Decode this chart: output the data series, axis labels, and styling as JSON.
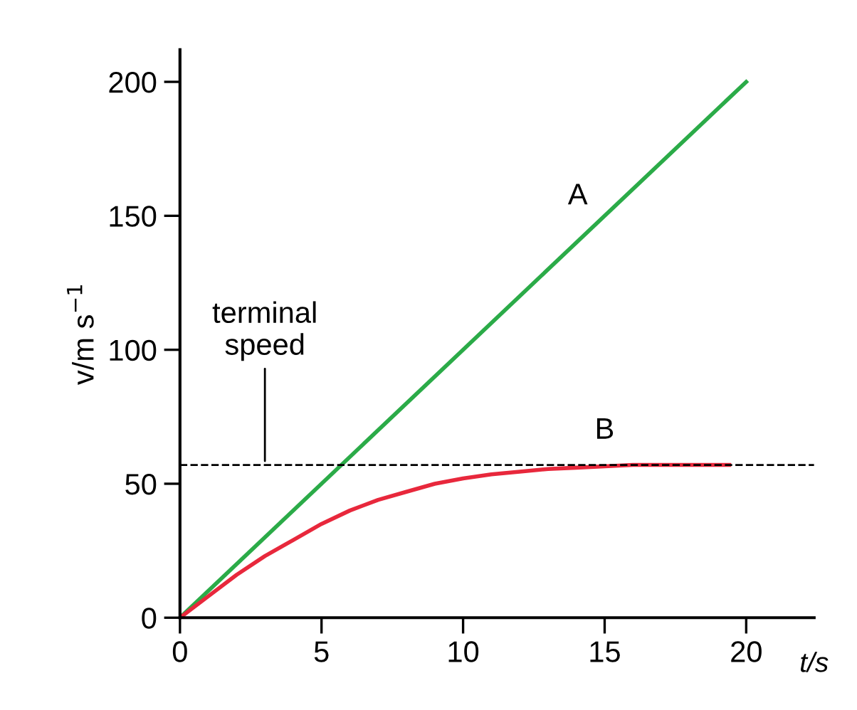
{
  "chart_data": {
    "type": "line",
    "xlabel": "t/s",
    "ylabel": "v/m s$^{−1}$",
    "xlim": [
      0,
      22.4
    ],
    "ylim": [
      0,
      212
    ],
    "xticks": [
      0,
      5,
      10,
      15,
      20
    ],
    "yticks": [
      0,
      50,
      100,
      150,
      200
    ],
    "grid": false,
    "legend": false,
    "marker": "none",
    "line_style": "solid",
    "series": [
      {
        "name": "A",
        "color": "#2bab48",
        "x": [
          0,
          20
        ],
        "values": [
          0,
          200
        ]
      },
      {
        "name": "B",
        "color": "#e8283c",
        "x": [
          0,
          1,
          2,
          3,
          4,
          5,
          6,
          7,
          8,
          9,
          10,
          11,
          12,
          13,
          14,
          15,
          16,
          17,
          18,
          19.4
        ],
        "values": [
          0,
          8,
          16,
          23,
          29,
          35,
          40,
          44,
          47,
          50,
          52,
          53.5,
          54.5,
          55.5,
          56,
          56.5,
          57,
          57,
          57,
          57
        ]
      }
    ],
    "ref_lines": [
      {
        "axis": "y",
        "value": 57,
        "label": "terminal\nspeed",
        "color": "#000000",
        "line_style": "dashed"
      }
    ]
  }
}
